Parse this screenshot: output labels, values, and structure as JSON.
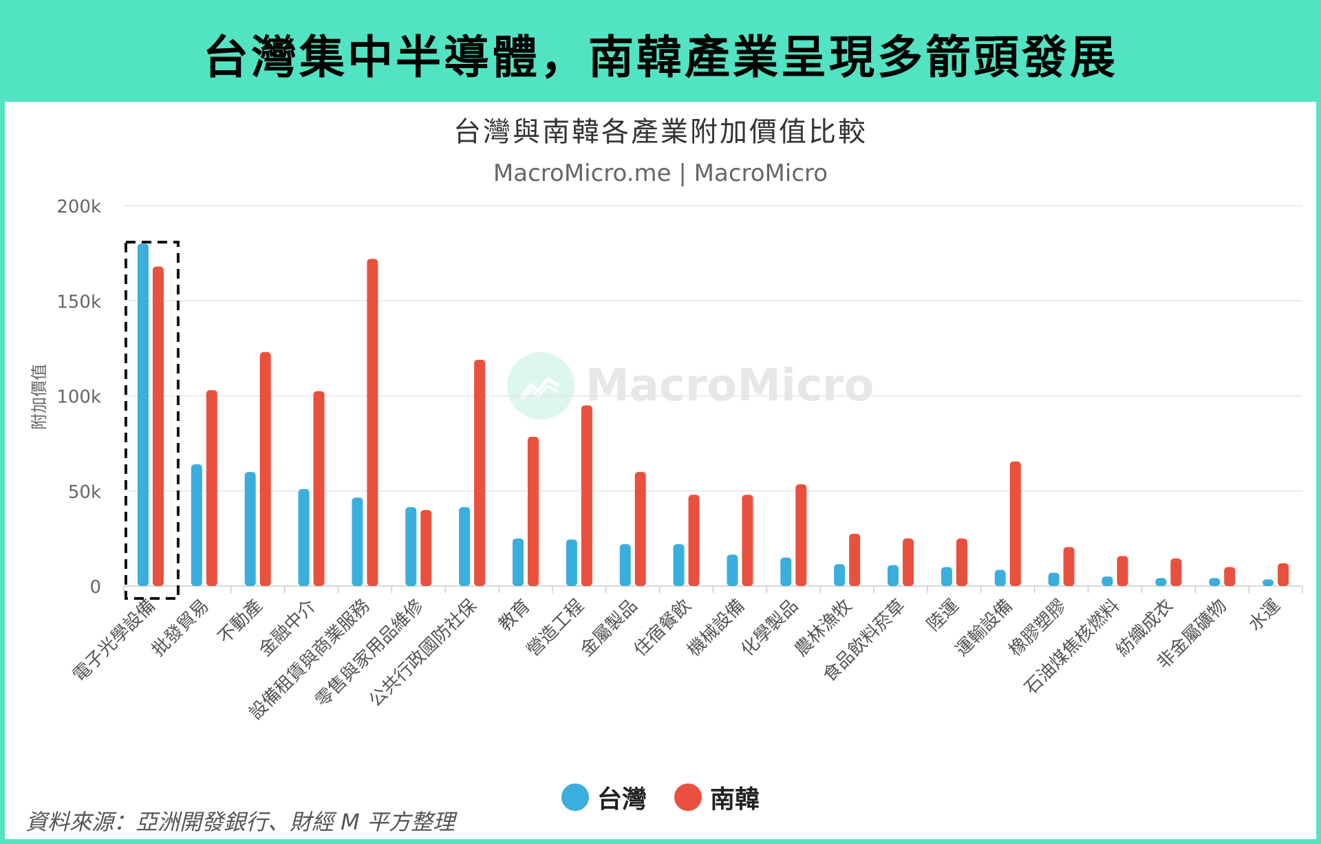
{
  "header": {
    "title": "台灣集中半導體，南韓產業呈現多箭頭發展"
  },
  "watermark": {
    "text": "MacroMicro"
  },
  "source": "資料來源：亞洲開發銀行、財經 M 平方整理",
  "colors": {
    "taiwan": "#3AAEDC",
    "korea": "#E9513E",
    "accent": "#52E3C2"
  },
  "chart_data": {
    "type": "bar",
    "title": "台灣與南韓各產業附加價值比較",
    "subtitle": "MacroMicro.me | MacroMicro",
    "ylabel": "附加價值",
    "xlabel": "",
    "ylim": [
      0,
      200000
    ],
    "yticks": [
      {
        "value": 0,
        "label": "0"
      },
      {
        "value": 50000,
        "label": "50k"
      },
      {
        "value": 100000,
        "label": "100k"
      },
      {
        "value": 150000,
        "label": "150k"
      },
      {
        "value": 200000,
        "label": "200k"
      }
    ],
    "categories": [
      "電子光學設備",
      "批發貿易",
      "不動產",
      "金融中介",
      "設備租賃與商業服務",
      "零售與家用品維修",
      "公共行政國防社保",
      "教育",
      "營造工程",
      "金屬製品",
      "住宿餐飲",
      "機械設備",
      "化學製品",
      "農林漁牧",
      "食品飲料菸草",
      "陸運",
      "運輸設備",
      "橡膠塑膠",
      "石油煤焦核燃料",
      "紡織成衣",
      "非金屬礦物",
      "水運"
    ],
    "series": [
      {
        "name": "台灣",
        "color": "#3AAEDC",
        "values": [
          180000,
          64000,
          60000,
          51000,
          46500,
          41500,
          41500,
          25000,
          24500,
          22000,
          22000,
          16500,
          15000,
          11500,
          11000,
          10000,
          8500,
          7000,
          5000,
          4200,
          4200,
          3500
        ]
      },
      {
        "name": "南韓",
        "color": "#E9513E",
        "values": [
          168000,
          103000,
          123000,
          102500,
          172000,
          40000,
          119000,
          78500,
          95000,
          60000,
          48000,
          48000,
          53500,
          27500,
          25000,
          25000,
          65500,
          20500,
          15800,
          14500,
          10000,
          12000
        ]
      }
    ],
    "grid": true,
    "legend": "bottom-center",
    "highlight": {
      "category": "電子光學設備",
      "style": "dashed-box"
    }
  }
}
